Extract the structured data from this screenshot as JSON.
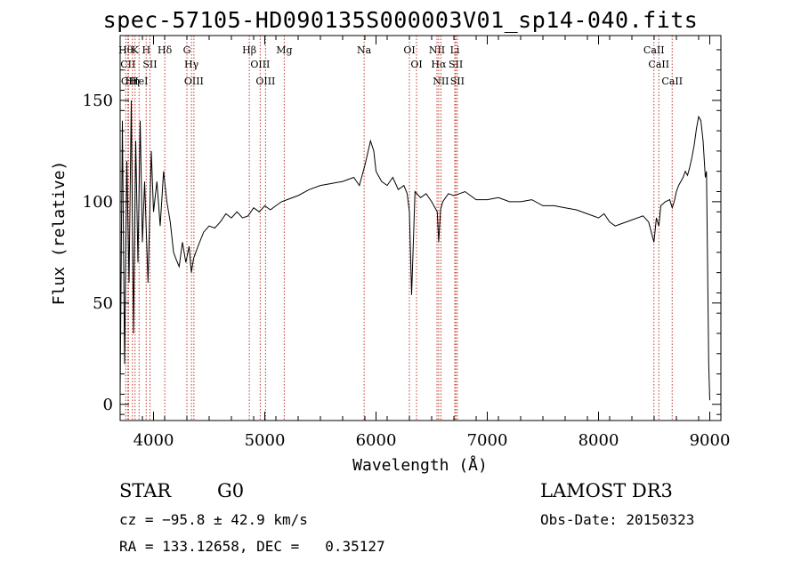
{
  "chart_data": {
    "type": "line",
    "title": "spec-57105-HD090135S000003V01_sp14-040.fits",
    "xlabel": "Wavelength (Å)",
    "ylabel": "Flux (relative)",
    "xlim": [
      3700,
      9100
    ],
    "ylim": [
      -8,
      182
    ],
    "x_ticks": [
      4000,
      5000,
      6000,
      7000,
      8000,
      9000
    ],
    "y_ticks": [
      0,
      50,
      100,
      150
    ],
    "grid": false,
    "series": [
      {
        "x": [
          3700,
          3720,
          3740,
          3760,
          3780,
          3800,
          3820,
          3840,
          3860,
          3880,
          3900,
          3920,
          3950,
          3980,
          4000,
          4030,
          4060,
          4090,
          4120,
          4150,
          4180,
          4200,
          4230,
          4260,
          4290,
          4320,
          4340,
          4360,
          4380,
          4400,
          4450,
          4500,
          4550,
          4600,
          4650,
          4700,
          4750,
          4800,
          4850,
          4900,
          4950,
          5000,
          5050,
          5100,
          5150,
          5200,
          5300,
          5400,
          5500,
          5600,
          5700,
          5800,
          5850,
          5900,
          5950,
          5980,
          6000,
          6050,
          6100,
          6150,
          6200,
          6250,
          6280,
          6300,
          6320,
          6350,
          6400,
          6450,
          6500,
          6550,
          6563,
          6580,
          6600,
          6650,
          6700,
          6750,
          6800,
          6900,
          7000,
          7100,
          7200,
          7300,
          7400,
          7500,
          7600,
          7700,
          7800,
          7900,
          8000,
          8050,
          8100,
          8150,
          8200,
          8300,
          8400,
          8450,
          8498,
          8520,
          8542,
          8560,
          8600,
          8640,
          8662,
          8680,
          8700,
          8720,
          8740,
          8760,
          8780,
          8800,
          8820,
          8840,
          8860,
          8880,
          8900,
          8920,
          8940,
          8960,
          8970,
          8980,
          8990,
          9000
        ],
        "y": [
          5,
          140,
          20,
          120,
          60,
          150,
          35,
          130,
          70,
          140,
          80,
          110,
          60,
          125,
          95,
          110,
          88,
          115,
          100,
          90,
          75,
          72,
          68,
          80,
          70,
          78,
          65,
          72,
          75,
          78,
          85,
          88,
          87,
          90,
          94,
          92,
          95,
          92,
          93,
          97,
          95,
          98,
          96,
          98,
          100,
          101,
          103,
          106,
          108,
          109,
          110,
          112,
          108,
          118,
          130,
          125,
          115,
          110,
          108,
          112,
          106,
          108,
          104,
          95,
          54,
          105,
          102,
          104,
          100,
          95,
          80,
          96,
          100,
          104,
          103,
          104,
          105,
          101,
          101,
          102,
          100,
          100,
          101,
          98,
          98,
          97,
          96,
          94,
          92,
          94,
          90,
          88,
          89,
          91,
          93,
          90,
          80,
          92,
          88,
          98,
          100,
          101,
          97,
          100,
          105,
          108,
          110,
          112,
          115,
          113,
          117,
          122,
          128,
          136,
          142,
          140,
          130,
          112,
          115,
          70,
          20,
          2
        ],
        "color": "#000000"
      }
    ],
    "line_labels": [
      {
        "x": 3750,
        "label": "Hθ"
      },
      {
        "x": 3770,
        "label": "CII"
      },
      {
        "x": 3775,
        "label": "CII"
      },
      {
        "x": 3810,
        "label": "Hη"
      },
      {
        "x": 3834,
        "label": "K"
      },
      {
        "x": 3870,
        "label": "HeI"
      },
      {
        "x": 3934,
        "label": "H"
      },
      {
        "x": 3968,
        "label": "SII"
      },
      {
        "x": 4101,
        "label": "Hδ"
      },
      {
        "x": 4300,
        "label": "G"
      },
      {
        "x": 4341,
        "label": "Hγ"
      },
      {
        "x": 4363,
        "label": "OIII"
      },
      {
        "x": 4861,
        "label": "Hβ"
      },
      {
        "x": 4959,
        "label": "OIII"
      },
      {
        "x": 5007,
        "label": "OIII"
      },
      {
        "x": 5175,
        "label": "Mg"
      },
      {
        "x": 5893,
        "label": "Na"
      },
      {
        "x": 6300,
        "label": "OI"
      },
      {
        "x": 6364,
        "label": "OI"
      },
      {
        "x": 6548,
        "label": "NII"
      },
      {
        "x": 6563,
        "label": "Hα"
      },
      {
        "x": 6583,
        "label": "NII"
      },
      {
        "x": 6708,
        "label": "Li"
      },
      {
        "x": 6717,
        "label": "SII"
      },
      {
        "x": 6731,
        "label": "SII"
      },
      {
        "x": 8498,
        "label": "CaII"
      },
      {
        "x": 8542,
        "label": "CaII"
      },
      {
        "x": 8662,
        "label": "CaII"
      }
    ]
  },
  "info": {
    "object_type": "STAR",
    "subclass": "G0",
    "survey": "LAMOST DR3",
    "redshift": "cz = −95.8 ± 42.9 km/s",
    "obs_date": "Obs-Date: 20150323",
    "coords": "RA = 133.12658, DEC =   0.35127"
  }
}
